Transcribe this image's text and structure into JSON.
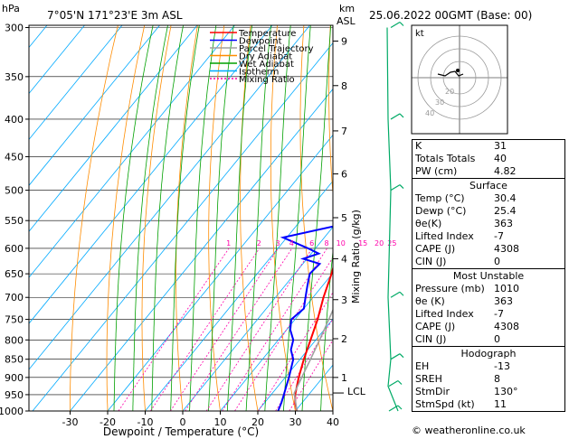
{
  "header": {
    "hpa_label": "hPa",
    "location": "7°05'N 171°23'E 3m ASL",
    "km_label": "km",
    "asl_label": "ASL",
    "datetime": "25.06.2022 00GMT (Base: 00)"
  },
  "legend": [
    "Temperature",
    "Dewpoint",
    "Parcel Trajectory",
    "Dry Adiabat",
    "Wet Adiabat",
    "Isotherm",
    "Mixing Ratio"
  ],
  "colors": {
    "temperature": "#ff0000",
    "dewpoint": "#0000ff",
    "parcel": "#a0a0a0",
    "dry_adiabat": "#ff8c00",
    "wet_adiabat": "#00a000",
    "isotherm": "#00aaff",
    "mixing_ratio": "#ff00aa",
    "wind": "#00aa66"
  },
  "chart_data": {
    "type": "line",
    "title": "7°05'N 171°23'E 3m ASL",
    "xlabel": "Dewpoint / Temperature (°C)",
    "ylabel": "hPa",
    "y2label": "Mixing Ratio (g/kg)",
    "x_ticks": [
      -30,
      -20,
      -10,
      0,
      10,
      20,
      30,
      40
    ],
    "pressure_ticks": [
      300,
      350,
      400,
      450,
      500,
      550,
      600,
      650,
      700,
      750,
      800,
      850,
      900,
      950,
      1000
    ],
    "km_ticks": [
      {
        "km": "1",
        "p": 900
      },
      {
        "km": "2",
        "p": 797
      },
      {
        "km": "3",
        "p": 705
      },
      {
        "km": "4",
        "p": 620
      },
      {
        "km": "5",
        "p": 545
      },
      {
        "km": "6",
        "p": 475
      },
      {
        "km": "7",
        "p": 415
      },
      {
        "km": "8",
        "p": 360
      },
      {
        "km": "9",
        "p": 313
      }
    ],
    "lcl_label": "LCL",
    "lcl_pressure": 945,
    "mixing_ratio_labels": [
      "1",
      "2",
      "3",
      "4",
      "6",
      "8",
      "10",
      "15",
      "20",
      "25"
    ],
    "mixing_ratio_values": [
      1,
      2,
      3,
      4,
      6,
      8,
      10,
      15,
      20,
      25
    ],
    "series": [
      {
        "name": "Temperature",
        "p": [
          1000,
          975,
          950,
          925,
          900,
          850,
          800,
          750,
          700,
          650,
          600,
          550,
          500,
          450,
          400,
          350,
          300
        ],
        "t": [
          30.4,
          28.2,
          26.4,
          25,
          23.6,
          21,
          18.6,
          16,
          12.8,
          9.8,
          6.2,
          2.6,
          -1.8,
          -7.2,
          -13.8,
          -22.5,
          -32.5
        ]
      },
      {
        "name": "Dewpoint",
        "p": [
          1000,
          975,
          950,
          925,
          900,
          850,
          825,
          800,
          775,
          750,
          725,
          700,
          675,
          650,
          630,
          620,
          610,
          600,
          580,
          560,
          550,
          520,
          500,
          480,
          450,
          400,
          390,
          380,
          350,
          330,
          300
        ],
        "t": [
          25.4,
          24.5,
          23.4,
          22.2,
          21,
          18.2,
          15.5,
          14,
          11,
          9,
          10,
          8,
          6,
          4,
          4.5,
          -1,
          2,
          -2,
          -11,
          0,
          -1,
          -4,
          -5,
          -8,
          -10,
          -12,
          -15,
          -17,
          -24,
          -34,
          -43
        ]
      },
      {
        "name": "Parcel Trajectory",
        "p": [
          1000,
          945,
          900,
          850,
          800,
          750,
          700,
          650,
          600,
          550,
          500,
          450,
          400,
          350,
          300
        ],
        "t": [
          30.4,
          25.8,
          24.4,
          22.8,
          21,
          19,
          16.8,
          14.4,
          11.6,
          8.4,
          4.6,
          0,
          -5.6,
          -12.6,
          -21.8
        ]
      }
    ],
    "wind_pressures": [
      300,
      400,
      500,
      700,
      850,
      925,
      1000
    ],
    "hodograph_rings": [
      "40",
      "30",
      "20"
    ]
  },
  "indices": [
    {
      "label": "K",
      "value": "31"
    },
    {
      "label": "Totals Totals",
      "value": "40"
    },
    {
      "label": "PW (cm)",
      "value": "4.82"
    }
  ],
  "surface": {
    "title": "Surface",
    "rows": [
      {
        "label": "Temp (°C)",
        "value": "30.4"
      },
      {
        "label": "Dewp (°C)",
        "value": "25.4"
      },
      {
        "label": "θe(K)",
        "value": "363"
      },
      {
        "label": "Lifted Index",
        "value": "-7"
      },
      {
        "label": "CAPE (J)",
        "value": "4308"
      },
      {
        "label": "CIN (J)",
        "value": "0"
      }
    ]
  },
  "most_unstable": {
    "title": "Most Unstable",
    "rows": [
      {
        "label": "Pressure (mb)",
        "value": "1010"
      },
      {
        "label": "θe (K)",
        "value": "363"
      },
      {
        "label": "Lifted Index",
        "value": "-7"
      },
      {
        "label": "CAPE (J)",
        "value": "4308"
      },
      {
        "label": "CIN (J)",
        "value": "0"
      }
    ]
  },
  "hodograph": {
    "title": "Hodograph",
    "kt_label": "kt",
    "rows": [
      {
        "label": "EH",
        "value": "-13"
      },
      {
        "label": "SREH",
        "value": "8"
      },
      {
        "label": "StmDir",
        "value": "130°"
      },
      {
        "label": "StmSpd (kt)",
        "value": "11"
      }
    ]
  },
  "copyright": "© weatheronline.co.uk"
}
